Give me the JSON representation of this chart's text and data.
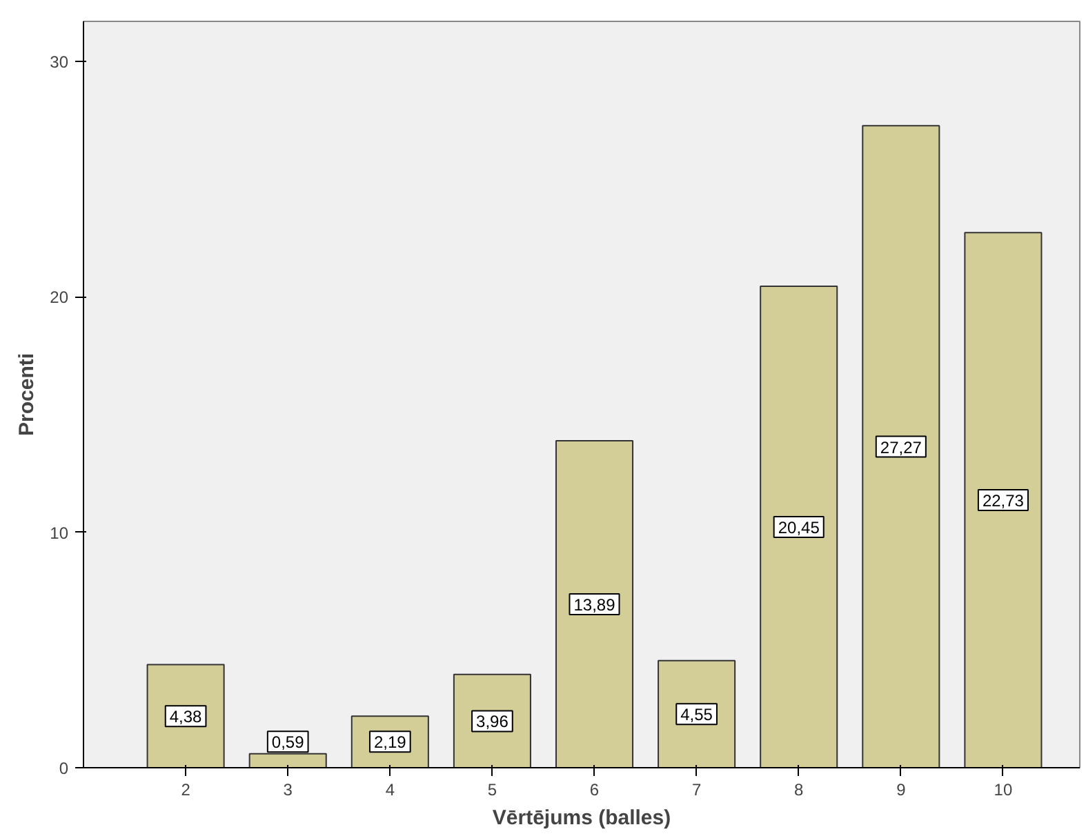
{
  "chart_data": {
    "type": "bar",
    "xlabel": "Vērtējums (balles)",
    "ylabel": "Procenti",
    "categories": [
      "2",
      "3",
      "4",
      "5",
      "6",
      "7",
      "8",
      "9",
      "10"
    ],
    "values": [
      4.38,
      0.59,
      2.19,
      3.96,
      13.89,
      4.55,
      20.45,
      27.27,
      22.73
    ],
    "value_labels": [
      "4,38",
      "0,59",
      "2,19",
      "3,96",
      "13,89",
      "4,55",
      "20,45",
      "27,27",
      "22,73"
    ],
    "color": "#d3ce97",
    "ylim": [
      0,
      31.7
    ],
    "yticks": [
      0,
      10,
      20,
      30
    ],
    "grid": false
  }
}
